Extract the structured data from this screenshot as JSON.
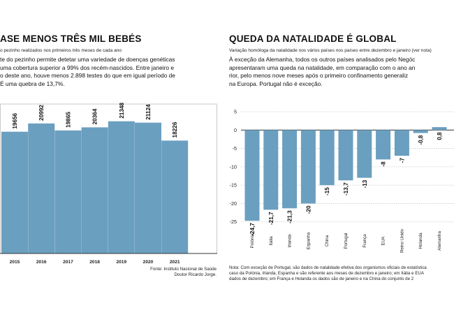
{
  "left": {
    "title": "ASE MENOS TRÊS MIL BEBÉS",
    "subtitle": "o pezinho realizados nos primeiros três meses de cada ano",
    "body": [
      "te do pezinho permite detetar uma variedade de doenças genéticas",
      "uma cobertura superior a 99% dos recém-nascidos. Entre janeiro e",
      "o deste ano, houve menos 2.898 testes do que em igual período de",
      "É uma quebra de 13,7%."
    ],
    "source": [
      "Fonte: Instituto Nacional de Saúde",
      "Doutor Ricardo Jorge."
    ]
  },
  "right": {
    "title": "QUEDA DA NATALIDADE É GLOBAL",
    "subtitle": "Variação homóloga da natalidade nos vários países nos países entre dezembro e janeiro (ver nota)",
    "body": [
      "À exceção da Alemanha, todos os outros países analisados pelo Negóc",
      "apresentaram uma queda na natalidade, em comparação com o ano an",
      "rior, pelo menos nove meses após o primeiro confinamento generaliz",
      "na Europa. Portugal não é exceção."
    ],
    "note": [
      "Nota: Com exceção de Portugal, são dados de natalidade efetiva dos organismos oficiais de estatística",
      "caso da Polónia, Irlanda, Espanha e são referente aos meses de dezembro e janeiro; em Itália e EUA",
      "dados de dezembro; em França e Holanda os dados são de janeiro e na China do conjunto de 2"
    ]
  },
  "colors": {
    "bar": "#6a9fc0",
    "grid": "#c9c9c9",
    "axis": "#333333"
  },
  "chart_data": [
    {
      "type": "bar",
      "categories": [
        "2015",
        "2016",
        "2017",
        "2018",
        "2019",
        "2020",
        "2021"
      ],
      "values": [
        19656,
        20992,
        19865,
        20364,
        21348,
        21124,
        18226
      ],
      "value_labels": [
        "19656",
        "20992",
        "19865",
        "20364",
        "21348",
        "21124",
        "18226"
      ],
      "ylim": [
        0,
        23000
      ],
      "grid": true
    },
    {
      "type": "bar",
      "categories": [
        "Polónia",
        "Itália",
        "Irlanda",
        "Espanha",
        "China",
        "Portugal",
        "França",
        "EUA",
        "Reino Unido",
        "Holanda",
        "Alemanha"
      ],
      "values": [
        -24.7,
        -21.7,
        -21.3,
        -20,
        -15,
        -13.7,
        -13,
        -8,
        -7,
        -0.8,
        0.8
      ],
      "value_labels": [
        "-24,7",
        "-21,7",
        "-21,3",
        "-20",
        "-15",
        "-13,7",
        "-13",
        "-8",
        "-7",
        "-0,8",
        "0,8"
      ],
      "yticks": [
        5,
        0,
        -5,
        -10,
        -15,
        -20,
        -25
      ],
      "ytick_labels": [
        "5",
        "0",
        "-5",
        "-10",
        "-15",
        "-20",
        "-25"
      ],
      "ylim": [
        -26,
        5
      ],
      "grid": true
    }
  ]
}
